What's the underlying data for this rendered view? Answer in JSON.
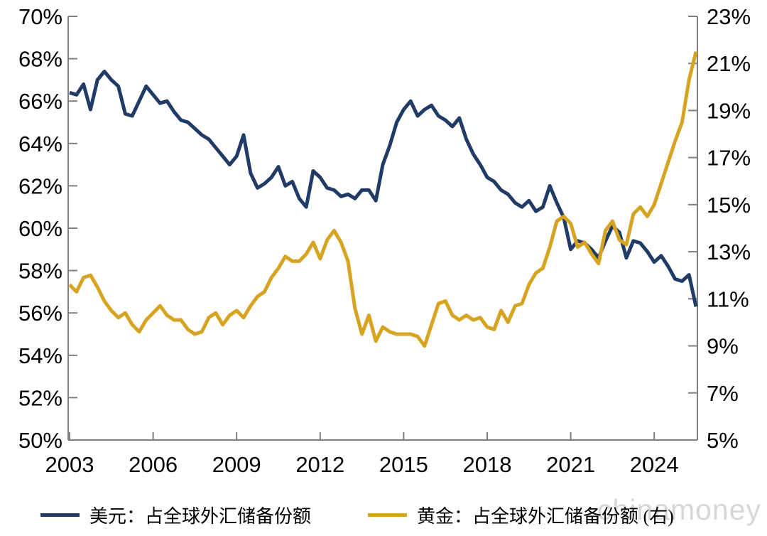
{
  "page": {
    "background": "#ffffff"
  },
  "watermark": {
    "text": "chinamoney",
    "color": "#d7d7d7"
  },
  "legend": {
    "items": [
      {
        "label": "美元：占全球外汇储备份额",
        "color": "#1f3b66",
        "series": "usd_share"
      },
      {
        "label": "黄金：占全球外汇储备份额 (右)",
        "color": "#d7a422",
        "series": "gold_share"
      }
    ]
  },
  "chart_data": {
    "type": "line",
    "title": "",
    "xlabel": "",
    "ylabel_left": "",
    "ylabel_right": "",
    "grid": false,
    "legend_position": "bottom",
    "axis_color": "#7f7f7f",
    "tick_label_color": "#000000",
    "x_start_year": 2003.0,
    "x_step_years": 0.25,
    "x_end_year": 2025.5,
    "x_tick_years": [
      2003,
      2006,
      2009,
      2012,
      2015,
      2018,
      2021,
      2024
    ],
    "x_tick_labels": [
      "2003",
      "2006",
      "2009",
      "2012",
      "2015",
      "2018",
      "2021",
      "2024"
    ],
    "left_axis": {
      "min": 50,
      "max": 70,
      "tick_labels": [
        "70%",
        "68%",
        "66%",
        "64%",
        "62%",
        "60%",
        "58%",
        "56%",
        "54%",
        "52%",
        "50%"
      ]
    },
    "right_axis": {
      "min": 5,
      "max": 23,
      "tick_labels": [
        "23%",
        "21%",
        "19%",
        "17%",
        "15%",
        "13%",
        "11%",
        "9%",
        "7%",
        "5%"
      ]
    },
    "series": [
      {
        "name": "美元：占全球外汇储备份额",
        "axis": "left",
        "color": "#1f3b66",
        "unit": "%",
        "values": [
          66.4,
          66.3,
          66.8,
          65.6,
          67.0,
          67.4,
          67.0,
          66.7,
          65.4,
          65.3,
          66.0,
          66.7,
          66.3,
          65.9,
          66.0,
          65.5,
          65.1,
          65.0,
          64.7,
          64.4,
          64.2,
          63.8,
          63.4,
          63.0,
          63.4,
          64.4,
          62.6,
          61.9,
          62.1,
          62.4,
          62.9,
          62.0,
          62.2,
          61.4,
          61.0,
          62.7,
          62.4,
          61.9,
          61.8,
          61.5,
          61.6,
          61.4,
          61.8,
          61.8,
          61.3,
          63.0,
          63.9,
          65.0,
          65.6,
          66.0,
          65.3,
          65.6,
          65.8,
          65.3,
          65.1,
          64.8,
          65.2,
          64.2,
          63.5,
          63.0,
          62.4,
          62.2,
          61.8,
          61.6,
          61.2,
          61.0,
          61.3,
          60.8,
          61.0,
          62.0,
          61.2,
          60.5,
          59.0,
          59.4,
          59.3,
          59.0,
          58.6,
          59.4,
          60.1,
          59.8,
          58.6,
          59.4,
          59.3,
          58.9,
          58.4,
          58.7,
          58.2,
          57.6,
          57.5,
          57.8,
          56.3
        ]
      },
      {
        "name": "黄金：占全球外汇储备份额 (右)",
        "axis": "right",
        "color": "#d7a422",
        "unit": "%",
        "values": [
          11.6,
          11.3,
          11.9,
          12.0,
          11.5,
          10.9,
          10.5,
          10.2,
          10.4,
          9.9,
          9.6,
          10.1,
          10.4,
          10.7,
          10.3,
          10.1,
          10.1,
          9.7,
          9.5,
          9.6,
          10.2,
          10.4,
          9.9,
          10.3,
          10.5,
          10.2,
          10.7,
          11.1,
          11.3,
          11.9,
          12.3,
          12.8,
          12.6,
          12.6,
          12.9,
          13.4,
          12.7,
          13.5,
          13.9,
          13.4,
          12.6,
          10.6,
          9.5,
          10.3,
          9.2,
          9.8,
          9.6,
          9.5,
          9.5,
          9.5,
          9.4,
          9.0,
          9.9,
          10.8,
          10.9,
          10.3,
          10.1,
          10.3,
          10.1,
          10.2,
          9.8,
          9.7,
          10.5,
          10.0,
          10.7,
          10.8,
          11.6,
          12.1,
          12.3,
          13.2,
          14.3,
          14.5,
          14.2,
          13.2,
          13.4,
          12.9,
          12.5,
          13.9,
          14.3,
          13.5,
          13.3,
          14.6,
          14.9,
          14.5,
          15.0,
          15.9,
          16.8,
          17.7,
          18.5,
          20.3,
          21.5
        ]
      }
    ]
  }
}
